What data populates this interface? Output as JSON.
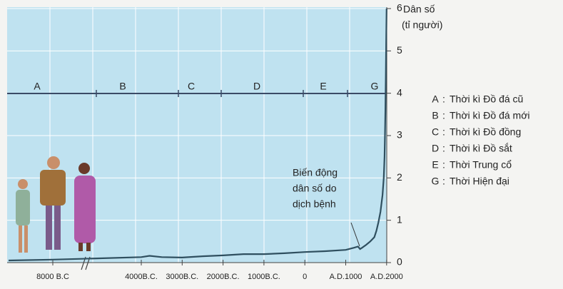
{
  "chart_data": {
    "type": "line",
    "y_axis_label": [
      "Dân số",
      "(tỉ người)"
    ],
    "x": [
      -10000,
      -8000,
      -6000,
      -4000,
      -3800,
      -3500,
      -3000,
      -2500,
      -2000,
      -1500,
      -1000,
      -500,
      0,
      500,
      1000,
      1200,
      1300,
      1350,
      1400,
      1500,
      1600,
      1700,
      1750,
      1800,
      1850,
      1900,
      1930,
      1950,
      1960,
      1970,
      1980,
      1990,
      2000
    ],
    "series": [
      {
        "color": "#2f4f5f",
        "values": [
          0.05,
          0.07,
          0.1,
          0.13,
          0.16,
          0.13,
          0.12,
          0.15,
          0.17,
          0.2,
          0.2,
          0.22,
          0.25,
          0.27,
          0.3,
          0.35,
          0.38,
          0.32,
          0.35,
          0.42,
          0.5,
          0.6,
          0.75,
          0.95,
          1.2,
          1.6,
          2.0,
          2.5,
          3.0,
          3.6,
          4.4,
          5.2,
          6.0
        ]
      }
    ],
    "xlim": [
      -10000,
      2000
    ],
    "xticks": [
      {
        "value": -8000,
        "label": "8000 B.C"
      },
      {
        "value": -4000,
        "label": "4000B.C."
      },
      {
        "value": -3000,
        "label": "3000B.C."
      },
      {
        "value": -2000,
        "label": "2000B.C."
      },
      {
        "value": -1000,
        "label": "1000B.C."
      },
      0,
      {
        "value": 1000,
        "label": "A.D.1000"
      },
      {
        "value": 2000,
        "label": "A.D.2000"
      }
    ],
    "ylim": [
      0,
      6
    ],
    "yticks": [
      0,
      1,
      2,
      3,
      4,
      5,
      6
    ],
    "grid": true,
    "eras": [
      {
        "code": "A",
        "name": "Thời kì Đồ đá cũ"
      },
      {
        "code": "B",
        "name": "Thời kì Đồ đá mới"
      },
      {
        "code": "C",
        "name": "Thời kì Đồ đồng"
      },
      {
        "code": "D",
        "name": "Thời kì Đồ sắt"
      },
      {
        "code": "E",
        "name": "Thời Trung cổ"
      },
      {
        "code": "G",
        "name": "Thời Hiện đại"
      }
    ],
    "annotation": [
      "Biến động",
      "dân số do",
      "dịch bệnh"
    ]
  }
}
